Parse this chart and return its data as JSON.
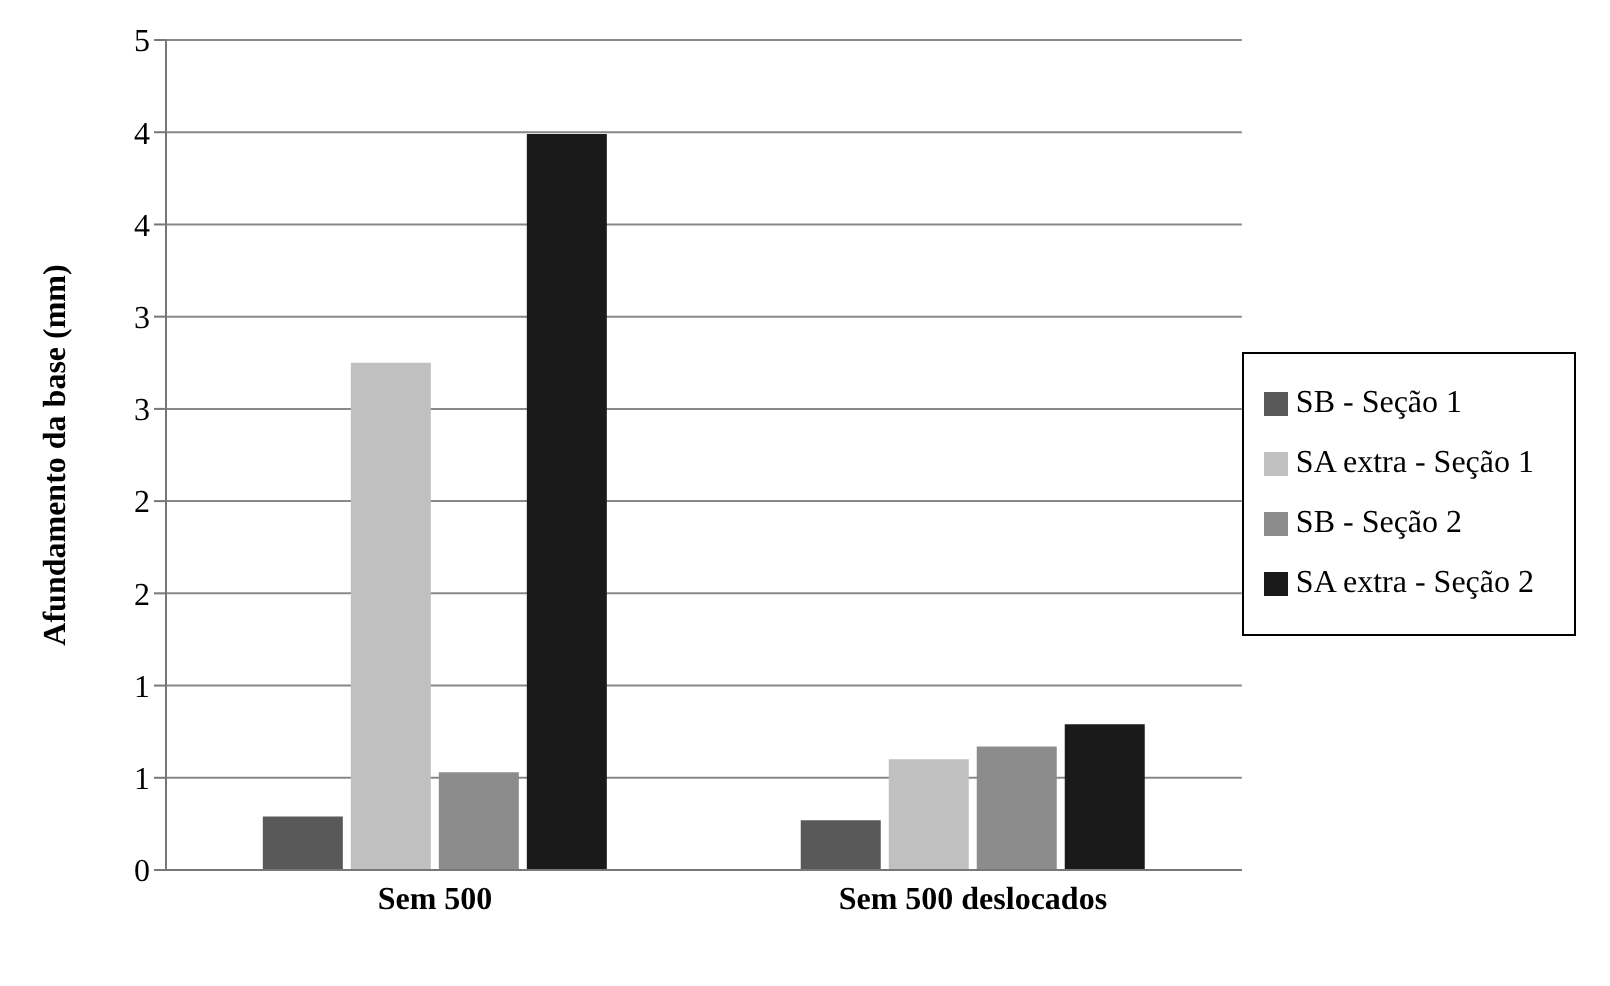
{
  "chart_data": {
    "type": "bar",
    "ylabel": "Afundamento da base (mm)",
    "categories": [
      "Sem 500",
      "Sem 500 deslocados"
    ],
    "series": [
      {
        "name": "SB - Seção 1",
        "color": "#595959",
        "values": [
          0.29,
          0.27
        ]
      },
      {
        "name": "SA extra - Seção 1",
        "color": "#c0c0c0",
        "values": [
          2.75,
          0.6
        ]
      },
      {
        "name": "SB - Seção 2",
        "color": "#8c8c8c",
        "values": [
          0.53,
          0.67
        ]
      },
      {
        "name": "SA extra - Seção 2",
        "color": "#1a1a1a",
        "values": [
          3.99,
          0.79
        ]
      }
    ],
    "ylim": [
      0,
      4.5
    ],
    "yticks": [
      0,
      {
        "value": 0.5,
        "label": "1"
      },
      1,
      {
        "value": 1.5,
        "label": "2"
      },
      2,
      {
        "value": 2.5,
        "label": "3"
      },
      3,
      {
        "value": 3.5,
        "label": "4"
      },
      4,
      {
        "value": 4.5,
        "label": "5"
      }
    ],
    "grid": "y",
    "legend": "right"
  }
}
